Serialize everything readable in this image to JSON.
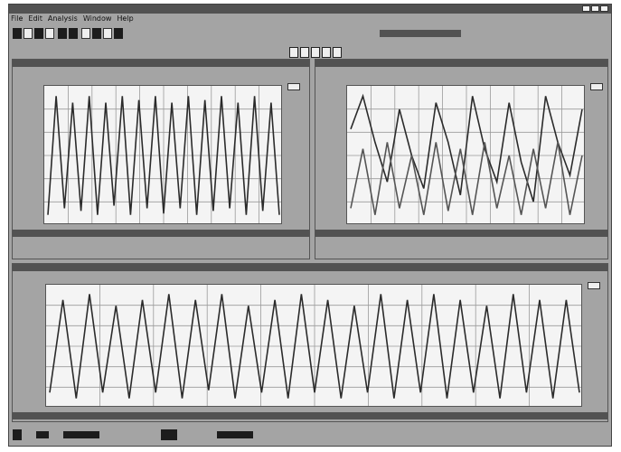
{
  "window": {
    "title": "",
    "menu": [
      "File",
      "Edit",
      "Analysis",
      "Window",
      "Help"
    ]
  },
  "panels": [
    {
      "id": "top-left",
      "title": ""
    },
    {
      "id": "top-right",
      "title": ""
    },
    {
      "id": "bottom",
      "title": ""
    }
  ],
  "chart_data": [
    {
      "type": "line",
      "title": "",
      "description_series": [
        {
          "values": [
            0.05,
            0.95,
            0.1,
            0.9,
            0.08,
            0.95,
            0.05,
            0.9,
            0.12,
            0.95,
            0.05,
            0.92,
            0.1,
            0.95,
            0.06,
            0.9,
            0.1,
            0.95,
            0.05,
            0.92,
            0.08,
            0.95,
            0.1,
            0.9,
            0.05,
            0.95,
            0.08,
            0.9,
            0.05
          ]
        }
      ]
    },
    {
      "type": "line",
      "title": "",
      "description_series": [
        {
          "values": [
            0.7,
            0.95,
            0.6,
            0.3,
            0.85,
            0.5,
            0.25,
            0.9,
            0.6,
            0.2,
            0.95,
            0.55,
            0.3,
            0.9,
            0.45,
            0.15,
            0.95,
            0.6,
            0.35,
            0.85
          ]
        },
        {
          "values": [
            0.1,
            0.55,
            0.05,
            0.6,
            0.1,
            0.5,
            0.05,
            0.6,
            0.08,
            0.55,
            0.05,
            0.6,
            0.1,
            0.5,
            0.05,
            0.55,
            0.1,
            0.6,
            0.05,
            0.5
          ]
        }
      ]
    },
    {
      "type": "line",
      "title": "",
      "description_series": [
        {
          "values": [
            0.1,
            0.9,
            0.05,
            0.95,
            0.1,
            0.85,
            0.05,
            0.9,
            0.1,
            0.95,
            0.05,
            0.9,
            0.12,
            0.95,
            0.05,
            0.85,
            0.1,
            0.9,
            0.05,
            0.95,
            0.1,
            0.9,
            0.05,
            0.85,
            0.1,
            0.95,
            0.05,
            0.9,
            0.1,
            0.95,
            0.05,
            0.9,
            0.1,
            0.85,
            0.05,
            0.95,
            0.1,
            0.9,
            0.05,
            0.9,
            0.1
          ]
        }
      ]
    }
  ]
}
